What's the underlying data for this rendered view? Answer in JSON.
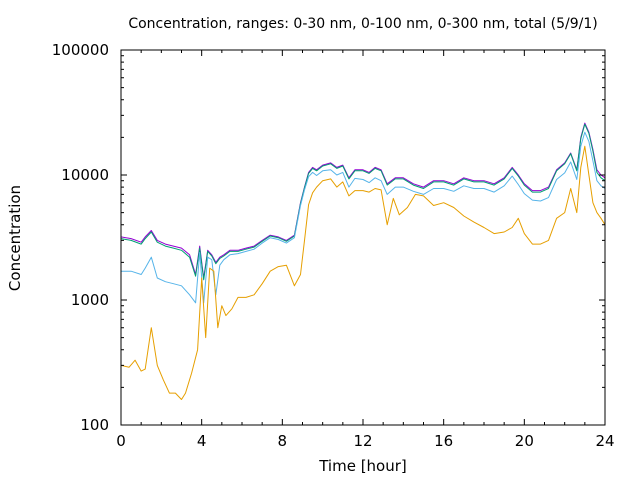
{
  "chart_data": {
    "type": "line",
    "title": "Concentration, ranges: 0-30 nm, 0-100 nm, 0-300 nm, total (5/9/1)",
    "xlabel": "Time [hour]",
    "ylabel": "Concentration",
    "xlim": [
      0,
      24
    ],
    "ylim": [
      100,
      100000
    ],
    "yscale": "log",
    "x_ticks": [
      0,
      4,
      8,
      12,
      16,
      20,
      24
    ],
    "y_ticks": [
      100,
      1000,
      10000,
      100000
    ],
    "x_tick_labels": [
      "0",
      "4",
      "8",
      "12",
      "16",
      "20",
      "24"
    ],
    "y_tick_labels": [
      "100",
      "1000",
      "10000",
      "100000"
    ],
    "grid": false,
    "series": [
      {
        "color": "#9400d3",
        "x": [
          0,
          0.5,
          1,
          1.2,
          1.5,
          1.8,
          2.2,
          2.6,
          3,
          3.4,
          3.7,
          3.9,
          4.1,
          4.3,
          4.5,
          4.7,
          4.9,
          5.1,
          5.4,
          5.8,
          6.2,
          6.6,
          7,
          7.4,
          7.8,
          8.2,
          8.6,
          8.9,
          9.1,
          9.3,
          9.5,
          9.7,
          10,
          10.4,
          10.7,
          11,
          11.3,
          11.6,
          12,
          12.3,
          12.6,
          12.9,
          13.2,
          13.6,
          14,
          14.5,
          15,
          15.5,
          16,
          16.5,
          17,
          17.5,
          18,
          18.5,
          19,
          19.4,
          19.7,
          20,
          20.4,
          20.8,
          21.2,
          21.6,
          22,
          22.3,
          22.6,
          22.8,
          23,
          23.2,
          23.4,
          23.6,
          23.8,
          24
        ],
        "values": [
          3200,
          3100,
          2900,
          3200,
          3600,
          3000,
          2800,
          2700,
          2600,
          2300,
          1600,
          2700,
          1500,
          2500,
          2300,
          2000,
          2200,
          2300,
          2500,
          2500,
          2600,
          2700,
          3000,
          3300,
          3200,
          3000,
          3300,
          6000,
          8000,
          10500,
          11500,
          11000,
          12000,
          12500,
          11500,
          12000,
          9500,
          11000,
          11000,
          10500,
          11500,
          11000,
          8500,
          9500,
          9500,
          8500,
          8000,
          9000,
          9000,
          8500,
          9500,
          9000,
          9000,
          8500,
          9500,
          11500,
          10000,
          8500,
          7500,
          7500,
          8000,
          11000,
          12500,
          15000,
          11000,
          20000,
          26000,
          22000,
          16000,
          11000,
          10000,
          9500
        ]
      },
      {
        "color": "#009e73",
        "x": [
          0,
          0.5,
          1,
          1.2,
          1.5,
          1.8,
          2.2,
          2.6,
          3,
          3.4,
          3.7,
          3.9,
          4.1,
          4.3,
          4.5,
          4.7,
          4.9,
          5.1,
          5.4,
          5.8,
          6.2,
          6.6,
          7,
          7.4,
          7.8,
          8.2,
          8.6,
          8.9,
          9.1,
          9.3,
          9.5,
          9.7,
          10,
          10.4,
          10.7,
          11,
          11.3,
          11.6,
          12,
          12.3,
          12.6,
          12.9,
          13.2,
          13.6,
          14,
          14.5,
          15,
          15.5,
          16,
          16.5,
          17,
          17.5,
          18,
          18.5,
          19,
          19.4,
          19.7,
          20,
          20.4,
          20.8,
          21.2,
          21.6,
          22,
          22.3,
          22.6,
          22.8,
          23,
          23.2,
          23.4,
          23.6,
          23.8,
          24
        ],
        "values": [
          3100,
          3000,
          2800,
          3100,
          3500,
          2900,
          2700,
          2600,
          2500,
          2200,
          1550,
          2600,
          1450,
          2450,
          2250,
          1950,
          2150,
          2250,
          2450,
          2450,
          2550,
          2650,
          2950,
          3250,
          3150,
          2950,
          3250,
          5900,
          7900,
          10300,
          11300,
          10800,
          11800,
          12300,
          11300,
          11800,
          9300,
          10800,
          10800,
          10300,
          11300,
          10800,
          8300,
          9300,
          9300,
          8300,
          7800,
          8800,
          8800,
          8300,
          9300,
          8800,
          8800,
          8300,
          9300,
          11300,
          9800,
          8300,
          7300,
          7300,
          7800,
          10800,
          12300,
          14800,
          10800,
          19500,
          25500,
          21500,
          15500,
          10500,
          9500,
          9000
        ]
      },
      {
        "color": "#56b4e9",
        "x": [
          0,
          0.5,
          1,
          1.2,
          1.5,
          1.8,
          2.2,
          2.6,
          3,
          3.4,
          3.7,
          3.9,
          4.1,
          4.3,
          4.5,
          4.7,
          4.9,
          5.1,
          5.4,
          5.8,
          6.2,
          6.6,
          7,
          7.4,
          7.8,
          8.2,
          8.6,
          8.9,
          9.1,
          9.3,
          9.5,
          9.7,
          10,
          10.4,
          10.7,
          11,
          11.3,
          11.6,
          12,
          12.3,
          12.6,
          12.9,
          13.2,
          13.6,
          14,
          14.5,
          15,
          15.5,
          16,
          16.5,
          17,
          17.5,
          18,
          18.5,
          19,
          19.4,
          19.7,
          20,
          20.4,
          20.8,
          21.2,
          21.6,
          22,
          22.3,
          22.6,
          22.8,
          23,
          23.2,
          23.4,
          23.6,
          23.8,
          24
        ],
        "values": [
          1700,
          1700,
          1600,
          1800,
          2200,
          1500,
          1400,
          1350,
          1300,
          1100,
          950,
          2400,
          950,
          2200,
          2100,
          1100,
          1900,
          2100,
          2300,
          2350,
          2450,
          2550,
          2850,
          3150,
          3050,
          2850,
          3150,
          5700,
          7600,
          9700,
          10500,
          9900,
          10800,
          11000,
          10000,
          10500,
          8000,
          9400,
          9200,
          8700,
          9500,
          9000,
          7000,
          8000,
          8000,
          7400,
          7000,
          7800,
          7800,
          7400,
          8200,
          7800,
          7800,
          7300,
          8200,
          9800,
          8400,
          7100,
          6300,
          6200,
          6600,
          9200,
          10400,
          12700,
          9200,
          17000,
          22000,
          18500,
          13000,
          9000,
          8200,
          7800
        ]
      },
      {
        "color": "#e69f00",
        "x": [
          0,
          0.4,
          0.7,
          1,
          1.2,
          1.5,
          1.8,
          2.1,
          2.4,
          2.7,
          3,
          3.2,
          3.5,
          3.8,
          4,
          4.2,
          4.4,
          4.6,
          4.8,
          5,
          5.2,
          5.5,
          5.8,
          6.2,
          6.6,
          7,
          7.4,
          7.8,
          8.2,
          8.6,
          8.9,
          9.1,
          9.3,
          9.5,
          9.7,
          10,
          10.4,
          10.7,
          11,
          11.3,
          11.6,
          12,
          12.3,
          12.6,
          12.9,
          13.2,
          13.5,
          13.8,
          14.2,
          14.6,
          15,
          15.5,
          16,
          16.5,
          17,
          17.5,
          18,
          18.5,
          19,
          19.4,
          19.7,
          20,
          20.4,
          20.8,
          21.2,
          21.6,
          22,
          22.3,
          22.6,
          22.8,
          23,
          23.2,
          23.4,
          23.6,
          23.8,
          24
        ],
        "values": [
          300,
          290,
          330,
          270,
          280,
          600,
          300,
          230,
          180,
          180,
          160,
          180,
          260,
          400,
          1500,
          500,
          1800,
          1700,
          600,
          900,
          750,
          850,
          1050,
          1050,
          1100,
          1350,
          1700,
          1850,
          1900,
          1300,
          1600,
          3000,
          5800,
          7200,
          8000,
          9000,
          9300,
          8000,
          8800,
          6800,
          7500,
          7500,
          7300,
          7800,
          7600,
          4000,
          6500,
          4800,
          5500,
          7000,
          6800,
          5700,
          6000,
          5500,
          4700,
          4200,
          3800,
          3400,
          3500,
          3800,
          4500,
          3400,
          2800,
          2800,
          3000,
          4500,
          5000,
          7800,
          5000,
          11500,
          17000,
          10000,
          6000,
          5000,
          4500,
          4000
        ]
      }
    ]
  }
}
